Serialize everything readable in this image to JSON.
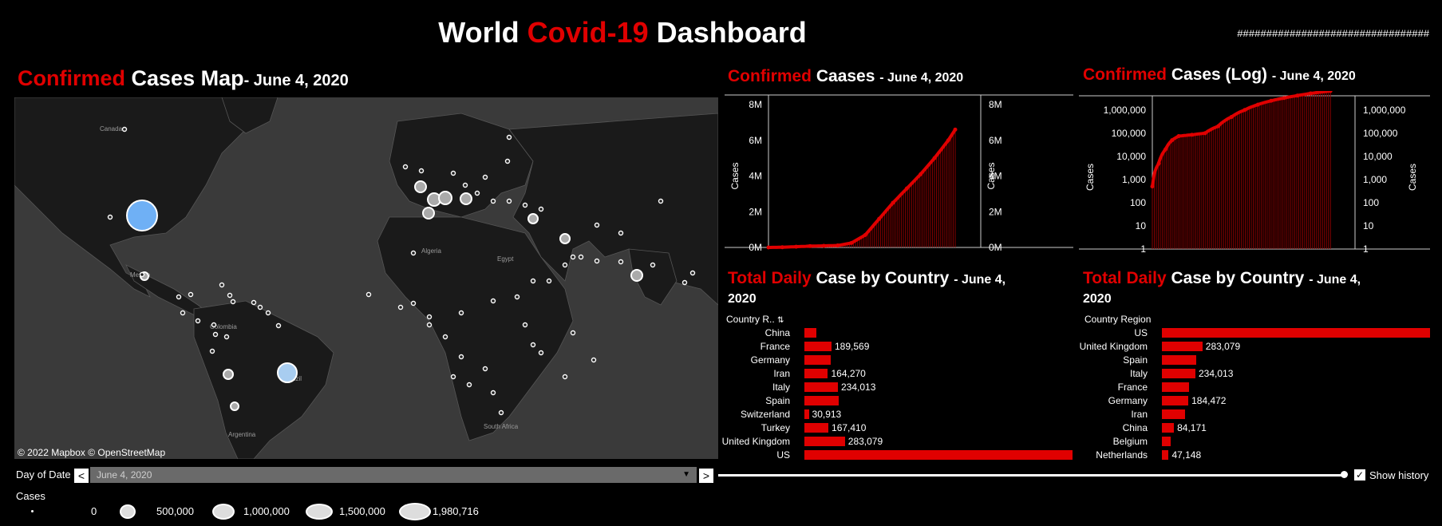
{
  "header": {
    "title_part1": "World",
    "title_part2": "Covid-19",
    "title_part3": "Dashboard",
    "hash_text": "#################################"
  },
  "map_panel": {
    "title_red": "Confirmed",
    "title_white": "Cases Map",
    "title_date": "- June 4, 2020",
    "credit": "© 2022 Mapbox © OpenStreetMap",
    "labels": [
      "Canada",
      "Mexico",
      "Colombia",
      "Algeria",
      "Egypt",
      "Brazil",
      "Argentina",
      "South Africa"
    ]
  },
  "filter": {
    "day_label": "Day of Date",
    "day_value": "June 4, 2020",
    "prev": "<",
    "next": ">",
    "show_history_label": "Show history",
    "show_history_checked": "✓"
  },
  "legend": {
    "title": "Cases",
    "items": [
      "0",
      "500,000",
      "1,000,000",
      "1,500,000",
      "1,980,716"
    ]
  },
  "chart_confirmed": {
    "title_red": "Confirmed",
    "title_white": "Caases",
    "title_date": "- June 4, 2020"
  },
  "chart_log": {
    "title_red": "Confirmed",
    "title_white": "Cases (Log)",
    "title_date": "- June 4, 2020"
  },
  "bars_left": {
    "title_red": "Total Daily",
    "title_white": "Case by Country",
    "title_date": "- June 4,",
    "title_year": "2020",
    "header": "Country R..",
    "header_icon": "sort-icon"
  },
  "bars_right": {
    "title_red": "Total Daily",
    "title_white": "Case by Country",
    "title_date": "- June 4,",
    "title_year": "2020",
    "header": "Country Region"
  },
  "colors": {
    "accent": "#e00000",
    "background": "#000000",
    "map": "#3a3a3a",
    "bubble": "#6fb0f5"
  },
  "chart_data": [
    {
      "type": "line",
      "ylabel": "Cases",
      "y_ticks": [
        "0M",
        "2M",
        "4M",
        "6M",
        "8M"
      ],
      "ylim": [
        0,
        8000000
      ],
      "x": [
        0,
        10,
        20,
        30,
        40,
        50,
        60,
        70,
        80,
        90,
        100,
        110,
        120,
        130,
        135
      ],
      "values": [
        500,
        10000,
        40000,
        75000,
        90000,
        110000,
        250000,
        700000,
        1600000,
        2500000,
        3300000,
        4100000,
        5000000,
        6000000,
        6600000
      ]
    },
    {
      "type": "line",
      "ylabel": "Cases",
      "scale": "log",
      "y_ticks": [
        "1",
        "10",
        "100",
        "1,000",
        "10,000",
        "100,000",
        "1,000,000"
      ],
      "x": [
        0,
        5,
        10,
        15,
        20,
        30,
        40,
        50,
        60,
        70,
        80,
        90,
        100,
        110,
        120,
        135
      ],
      "values": [
        500,
        5000,
        20000,
        50000,
        75000,
        85000,
        100000,
        200000,
        500000,
        1000000,
        1700000,
        2500000,
        3300000,
        4200000,
        5200000,
        6600000
      ]
    },
    {
      "type": "bar",
      "categories": [
        "China",
        "France",
        "Germany",
        "Iran",
        "Italy",
        "Spain",
        "Switzerland",
        "Turkey",
        "United Kingdom",
        "US"
      ],
      "values": [
        84171,
        189569,
        184472,
        164270,
        234013,
        240660,
        30913,
        167410,
        283079,
        1872660
      ],
      "labels": [
        "",
        "189,569",
        "",
        "164,270",
        "234,013",
        "",
        "30,913",
        "167,410",
        "283,079",
        ""
      ]
    },
    {
      "type": "bar",
      "categories": [
        "US",
        "United Kingdom",
        "Spain",
        "Italy",
        "France",
        "Germany",
        "Iran",
        "China",
        "Belgium",
        "Netherlands"
      ],
      "values": [
        1872660,
        283079,
        240660,
        234013,
        189569,
        184472,
        164270,
        84171,
        58767,
        47148
      ],
      "labels": [
        "",
        "283,079",
        "",
        "234,013",
        "",
        "184,472",
        "",
        "84,171",
        "",
        "47,148"
      ]
    }
  ]
}
